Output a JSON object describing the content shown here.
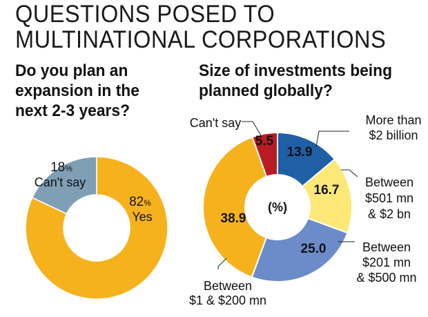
{
  "header": {
    "title_line1": "QUESTIONS POSED TO",
    "title_line2": "MULTINATIONAL CORPORATIONS"
  },
  "colors": {
    "yellow": "#f5b21d",
    "steel_blue": "#7f9fb6",
    "blue": "#1f5fa6",
    "light_yellow": "#fde878",
    "medium_blue": "#6b8cc9",
    "red": "#b81c24"
  },
  "chart_data": [
    {
      "type": "pie",
      "title_line1": "Do you plan an",
      "title_line2": "expansion in the",
      "title_line3": "next 2-3 years?",
      "unit": "%",
      "slices": [
        {
          "label": "Yes",
          "value": 82,
          "value_text": "82",
          "pct_text": "%",
          "color": "#f5b21d"
        },
        {
          "label": "Can't say",
          "value": 18,
          "value_text": "18",
          "pct_text": "%",
          "color": "#7f9fb6"
        }
      ]
    },
    {
      "type": "pie",
      "title_line1": "Size of investments being",
      "title_line2": "planned globally?",
      "center_label": "(%)",
      "slices": [
        {
          "value": 13.9,
          "value_text": "13.9",
          "label_lines": [
            "More than",
            "$2 billion"
          ],
          "color": "#1f5fa6",
          "text_color": "#ffffff"
        },
        {
          "value": 16.7,
          "value_text": "16.7",
          "label_lines": [
            "Between",
            "$501 mn",
            "& $2 bn"
          ],
          "color": "#fde878",
          "text_color": "#111111"
        },
        {
          "value": 25.0,
          "value_text": "25.0",
          "label_lines": [
            "Between",
            "$201 mn",
            "& $500 mn"
          ],
          "color": "#6b8cc9",
          "text_color": "#111111"
        },
        {
          "value": 38.9,
          "value_text": "38.9",
          "label_lines": [
            "Between",
            "$1 & $200 mn"
          ],
          "color": "#f5b21d",
          "text_color": "#111111"
        },
        {
          "value": 5.5,
          "value_text": "5.5",
          "label_lines": [
            "Can't say"
          ],
          "color": "#b81c24",
          "text_color": "#ffffff"
        }
      ]
    }
  ]
}
